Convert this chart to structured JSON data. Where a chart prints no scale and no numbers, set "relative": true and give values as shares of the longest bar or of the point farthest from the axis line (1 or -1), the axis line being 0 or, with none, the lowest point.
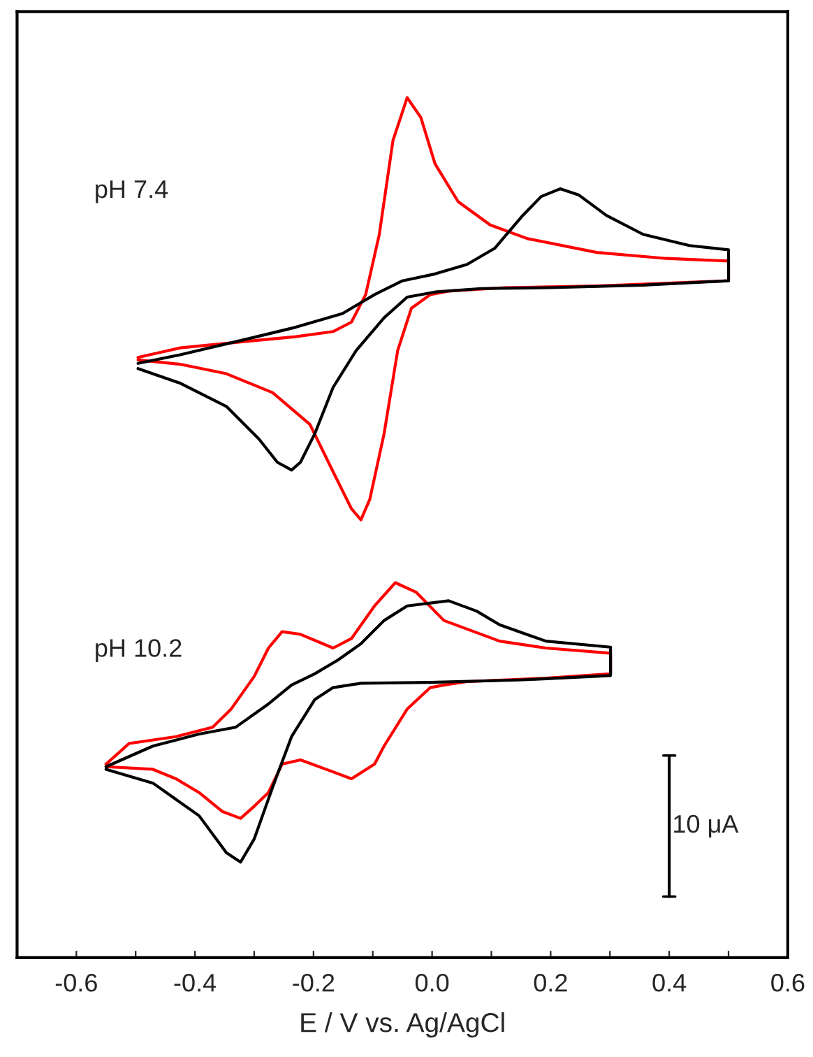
{
  "chart_data": {
    "type": "line",
    "relative": true,
    "xlabel": "E / V vs. Ag/AgCl",
    "xlim": [
      -0.7,
      0.6
    ],
    "xticks": [
      -0.6,
      {
        "value": -0.5,
        "label": null
      },
      -0.4,
      {
        "value": -0.3,
        "label": null
      },
      -0.2,
      {
        "value": -0.1,
        "label": null
      },
      {
        "value": 0,
        "label": "0.0"
      },
      {
        "value": 0.1,
        "label": null
      },
      0.2,
      {
        "value": 0.3,
        "label": null
      },
      0.4,
      {
        "value": 0.5,
        "label": null
      },
      0.6
    ],
    "tick_labels": "x",
    "grid": false,
    "legend": false,
    "marker": "none",
    "line_style": "solid",
    "annotations": [
      "pH 7.4",
      "pH 10.2",
      {
        "text": "10 μA",
        "x": 0.4,
        "y": 0.153
      }
    ],
    "series": [
      {
        "color": "#ff0000",
        "x": [
          -0.496,
          -0.425,
          -0.308,
          -0.23,
          -0.167,
          -0.136,
          -0.112,
          -0.089,
          -0.066,
          -0.042,
          -0.019,
          0.005,
          0.044,
          0.098,
          0.161,
          0.278,
          0.395,
          0.5,
          0.5,
          0.278,
          0.122,
          0.028,
          -0.003,
          -0.035,
          -0.058,
          -0.081,
          -0.105,
          -0.12,
          -0.136,
          -0.167,
          -0.206,
          -0.269,
          -0.347,
          -0.425,
          -0.496
        ],
        "values": [
          0.698,
          0.709,
          0.717,
          0.722,
          0.728,
          0.739,
          0.771,
          0.841,
          0.95,
          1.0,
          0.977,
          0.923,
          0.879,
          0.852,
          0.836,
          0.82,
          0.813,
          0.81,
          0.787,
          0.781,
          0.779,
          0.775,
          0.771,
          0.755,
          0.706,
          0.609,
          0.533,
          0.509,
          0.522,
          0.565,
          0.62,
          0.657,
          0.679,
          0.69,
          0.695
        ]
      },
      {
        "color": "#000000",
        "x": [
          -0.496,
          -0.425,
          -0.308,
          -0.23,
          -0.151,
          -0.097,
          -0.05,
          0.005,
          0.059,
          0.106,
          0.153,
          0.184,
          0.216,
          0.247,
          0.294,
          0.356,
          0.434,
          0.5,
          0.5,
          0.356,
          0.2,
          0.083,
          0.005,
          -0.042,
          -0.081,
          -0.128,
          -0.167,
          -0.198,
          -0.222,
          -0.237,
          -0.261,
          -0.292,
          -0.347,
          -0.425,
          -0.496
        ],
        "values": [
          0.691,
          0.701,
          0.72,
          0.733,
          0.749,
          0.771,
          0.787,
          0.795,
          0.806,
          0.825,
          0.863,
          0.885,
          0.894,
          0.887,
          0.863,
          0.841,
          0.828,
          0.823,
          0.787,
          0.782,
          0.779,
          0.778,
          0.774,
          0.768,
          0.744,
          0.706,
          0.663,
          0.609,
          0.576,
          0.567,
          0.576,
          0.603,
          0.641,
          0.668,
          0.685
        ]
      },
      {
        "color": "#ff0000",
        "x": [
          -0.55,
          -0.511,
          -0.432,
          -0.37,
          -0.339,
          -0.3,
          -0.276,
          -0.253,
          -0.222,
          -0.167,
          -0.136,
          -0.097,
          -0.062,
          -0.027,
          0.02,
          0.114,
          0.192,
          0.301,
          0.301,
          0.192,
          0.059,
          0.02,
          -0.003,
          -0.042,
          -0.081,
          -0.097,
          -0.136,
          -0.167,
          -0.222,
          -0.253,
          -0.276,
          -0.3,
          -0.323,
          -0.354,
          -0.393,
          -0.432,
          -0.471,
          -0.55
        ],
        "values": [
          0.225,
          0.249,
          0.257,
          0.268,
          0.289,
          0.327,
          0.36,
          0.379,
          0.376,
          0.36,
          0.371,
          0.409,
          0.436,
          0.425,
          0.392,
          0.368,
          0.36,
          0.354,
          0.33,
          0.325,
          0.321,
          0.317,
          0.314,
          0.289,
          0.246,
          0.225,
          0.208,
          0.216,
          0.23,
          0.225,
          0.192,
          0.176,
          0.162,
          0.17,
          0.192,
          0.208,
          0.219,
          0.222
        ]
      },
      {
        "color": "#000000",
        "x": [
          -0.55,
          -0.471,
          -0.393,
          -0.331,
          -0.276,
          -0.237,
          -0.198,
          -0.159,
          -0.12,
          -0.081,
          -0.042,
          0.028,
          0.075,
          0.114,
          0.192,
          0.301,
          0.301,
          0.153,
          -0.003,
          -0.12,
          -0.167,
          -0.198,
          -0.237,
          -0.269,
          -0.3,
          -0.323,
          -0.347,
          -0.393,
          -0.471,
          -0.55
        ],
        "values": [
          0.222,
          0.246,
          0.26,
          0.268,
          0.295,
          0.317,
          0.33,
          0.346,
          0.365,
          0.392,
          0.409,
          0.415,
          0.403,
          0.387,
          0.368,
          0.361,
          0.328,
          0.323,
          0.32,
          0.319,
          0.314,
          0.3,
          0.257,
          0.198,
          0.138,
          0.111,
          0.122,
          0.165,
          0.203,
          0.219
        ]
      },
      {
        "type": "line",
        "color": "#000000",
        "x": [
          0.4,
          0.4
        ],
        "values": [
          0.071,
          0.235
        ]
      }
    ]
  }
}
